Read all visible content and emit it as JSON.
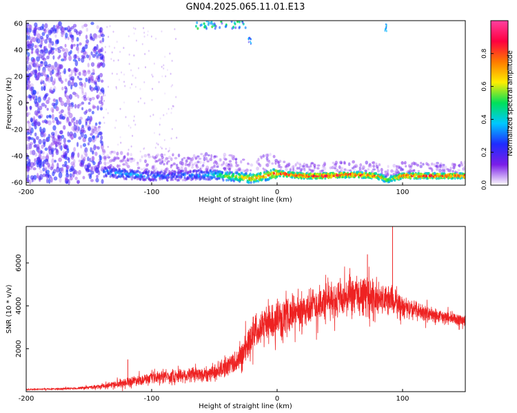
{
  "title": "GN04.2025.065.11.01.E13",
  "chart_data": [
    {
      "type": "heatmap",
      "xlabel": "Height of straight line (km)",
      "ylabel": "Frequency (Hz)",
      "xlim": [
        -200,
        150
      ],
      "ylim": [
        -62,
        62
      ],
      "xticks": [
        "-200",
        "-100",
        "0",
        "100"
      ],
      "xtick_values": [
        -200,
        -100,
        0,
        100
      ],
      "yticks": [
        "60",
        "40",
        "20",
        "0",
        "-20",
        "-40",
        "-60"
      ],
      "ytick_values": [
        60,
        40,
        20,
        0,
        -20,
        -40,
        -60
      ],
      "colorbar": {
        "label": "Normalized spectral amplitude",
        "range": [
          0,
          1
        ],
        "ticks": [
          "0.0",
          "0.2",
          "0.4",
          "0.6",
          "0.8"
        ],
        "tick_values": [
          0.0,
          0.2,
          0.4,
          0.6,
          0.8
        ],
        "colors": [
          "#ffffff",
          "#7a1ee8",
          "#1f2cff",
          "#00c8ff",
          "#00e05a",
          "#ffee00",
          "#ff7a00",
          "#ff0040",
          "#ff40a0"
        ]
      },
      "ridge": {
        "x": [
          -135,
          -120,
          -100,
          -80,
          -60,
          -40,
          -20,
          0,
          20,
          40,
          60,
          80,
          88,
          100,
          120,
          150
        ],
        "y": [
          -52,
          -54,
          -55,
          -55,
          -54,
          -55,
          -57,
          -53,
          -55,
          -55,
          -54,
          -55,
          -58,
          -55,
          -55,
          -55
        ],
        "amplitude": [
          0.3,
          0.35,
          0.3,
          0.25,
          0.35,
          0.55,
          0.7,
          0.8,
          0.85,
          0.9,
          0.85,
          0.8,
          0.6,
          0.85,
          0.85,
          0.85
        ]
      },
      "grid": false
    },
    {
      "type": "line",
      "xlabel": "Height of straight line (km)",
      "ylabel": "SNR (10 * v/v)",
      "xlim": [
        -200,
        150
      ],
      "ylim": [
        0,
        7700
      ],
      "xticks": [
        "-200",
        "-100",
        "0",
        "100"
      ],
      "xtick_values": [
        -200,
        -100,
        0,
        100
      ],
      "yticks": [
        "2000",
        "4000",
        "6000"
      ],
      "ytick_values": [
        2000,
        4000,
        6000
      ],
      "color": "#ee2222",
      "grid": false,
      "series": [
        {
          "x": [
            -200,
            -180,
            -160,
            -140,
            -130,
            -120,
            -110,
            -100,
            -90,
            -80,
            -70,
            -60,
            -50,
            -40,
            -30,
            -25,
            -20,
            -15,
            -10,
            -5,
            0,
            10,
            20,
            30,
            40,
            50,
            60,
            70,
            80,
            90,
            100,
            110,
            120,
            130,
            140,
            150
          ],
          "y": [
            100,
            120,
            150,
            250,
            350,
            450,
            550,
            600,
            700,
            750,
            800,
            800,
            900,
            1200,
            1500,
            2000,
            2700,
            3000,
            3200,
            3200,
            3300,
            3600,
            3800,
            4000,
            4200,
            4300,
            4400,
            4500,
            4300,
            4300,
            4000,
            3800,
            3600,
            3500,
            3400,
            3300
          ],
          "spread": [
            60,
            70,
            90,
            150,
            250,
            350,
            400,
            400,
            500,
            550,
            600,
            600,
            650,
            800,
            1000,
            1200,
            1300,
            1300,
            1300,
            1300,
            1300,
            1300,
            1300,
            1400,
            1400,
            1500,
            1600,
            1600,
            1300,
            1100,
            800,
            700,
            600,
            500,
            500,
            500
          ]
        }
      ],
      "spikes": [
        {
          "x": -119,
          "y": 1500
        },
        {
          "x": 72,
          "y": 6400
        },
        {
          "x": 92,
          "y": 7700
        }
      ]
    }
  ]
}
